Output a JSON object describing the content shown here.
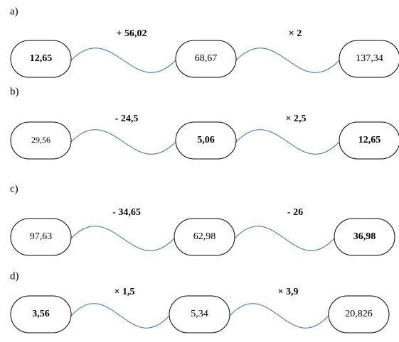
{
  "parts": [
    {
      "label": "a)",
      "nodes": [
        "12,65",
        "68,67",
        "137,34"
      ],
      "operations": [
        "+ 56,02",
        "× 2"
      ]
    },
    {
      "label": "b)",
      "nodes": [
        "29,56",
        "5,06",
        "12,65"
      ],
      "operations": [
        "- 24,5",
        "× 2,5"
      ]
    },
    {
      "label": "c)",
      "nodes": [
        "97,63",
        "62,98",
        "36,98"
      ],
      "operations": [
        "- 34,65",
        "- 26"
      ]
    },
    {
      "label": "d)",
      "nodes": [
        "3,56",
        "5,34",
        "20,826"
      ],
      "operations": [
        "× 1,5",
        "× 3,9"
      ]
    }
  ]
}
